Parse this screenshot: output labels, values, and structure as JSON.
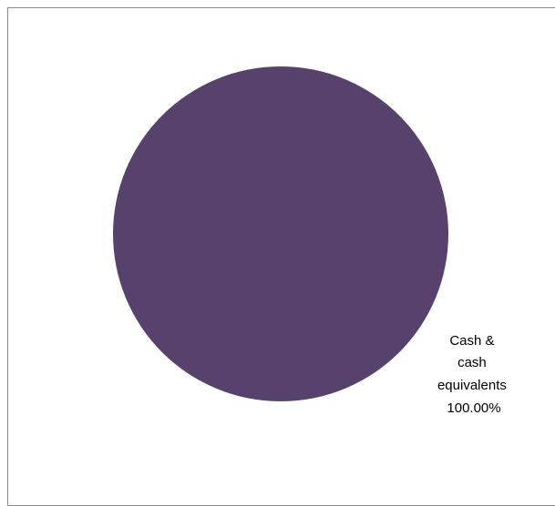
{
  "chart_data": {
    "type": "pie",
    "title": "",
    "slices": [
      {
        "label_lines": [
          "Cash &",
          "cash",
          "equivalents"
        ],
        "value_label": "100.00%",
        "value": 100.0,
        "color": "#56426d"
      }
    ],
    "legend": "none"
  }
}
